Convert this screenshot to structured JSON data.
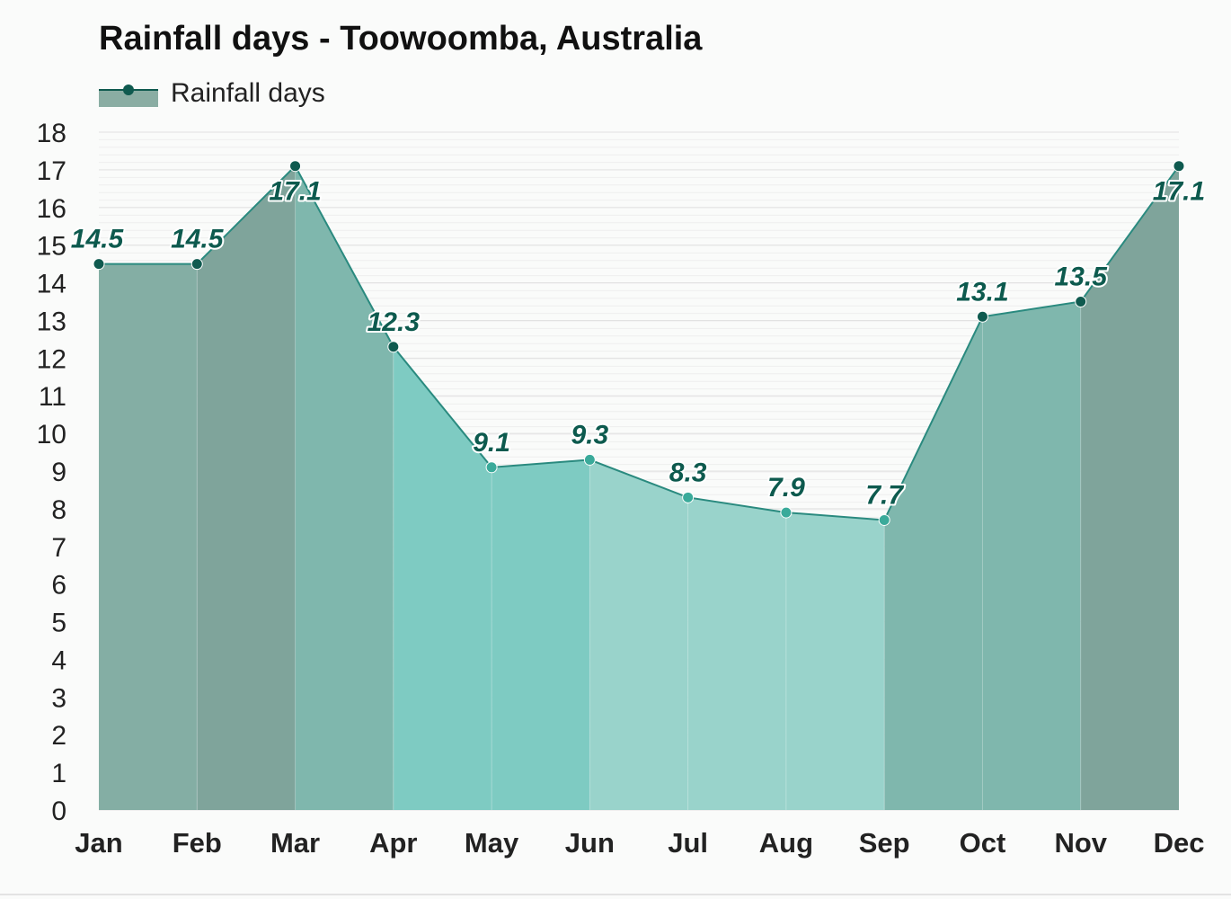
{
  "title": "Rainfall days - Toowoomba, Australia",
  "legend": {
    "label": "Rainfall days"
  },
  "chart_data": {
    "type": "area",
    "title": "Rainfall days - Toowoomba, Australia",
    "xlabel": "",
    "ylabel": "",
    "categories": [
      "Jan",
      "Feb",
      "Mar",
      "Apr",
      "May",
      "Jun",
      "Jul",
      "Aug",
      "Sep",
      "Oct",
      "Nov",
      "Dec"
    ],
    "series": [
      {
        "name": "Rainfall days",
        "values": [
          14.5,
          14.5,
          17.1,
          12.3,
          9.1,
          9.3,
          8.3,
          7.9,
          7.7,
          13.1,
          13.5,
          17.1
        ]
      }
    ],
    "data_labels": [
      "14.5",
      "14.5",
      "17.1",
      "12.3",
      "9.1",
      "9.3",
      "8.3",
      "7.9",
      "7.7",
      "13.1",
      "13.5",
      "17.1"
    ],
    "ylim": [
      0,
      18
    ],
    "yticks": [
      "0",
      "1",
      "2",
      "3",
      "4",
      "5",
      "6",
      "7",
      "8",
      "9",
      "10",
      "11",
      "12",
      "13",
      "14",
      "15",
      "16",
      "17",
      "18"
    ],
    "grid": true,
    "legend_position": "top-left",
    "colors": {
      "line": "#2a8a7f",
      "marker_dark": "#0f5a4f",
      "marker_light": "#3aaa9a",
      "label": "#0d5a4e",
      "segment_fills": [
        "#84aea4",
        "#7fa49b",
        "#7fb7ad",
        "#7ecbc2",
        "#7ecbc2",
        "#99d3cb",
        "#99d3cb",
        "#99d3cb",
        "#7fb7ad",
        "#7fb7ad",
        "#7fa49b"
      ]
    }
  }
}
